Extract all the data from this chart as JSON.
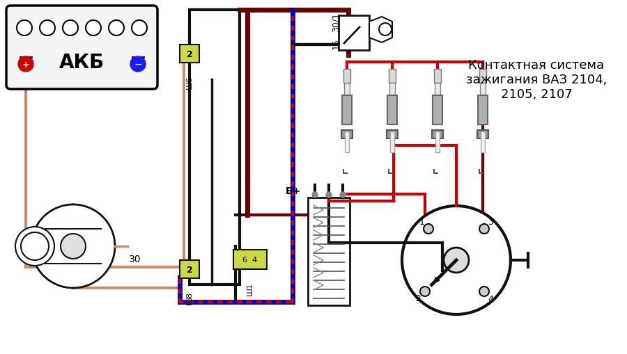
{
  "title": "Контактная система\nзажигания ВАЗ 2104,\n2105, 2107",
  "bg_color": "#ffffff",
  "wire_pink": "#c8906a",
  "wire_dark_red": "#6b0000",
  "wire_blue": "#0000cc",
  "wire_black": "#111111",
  "wire_red": "#cc0000",
  "connector_bg": "#ccd844",
  "label_akb": "АКБ",
  "label_b_plus": "Б+",
  "label_30": "30",
  "label_30_1": "30/1",
  "label_15": "15"
}
